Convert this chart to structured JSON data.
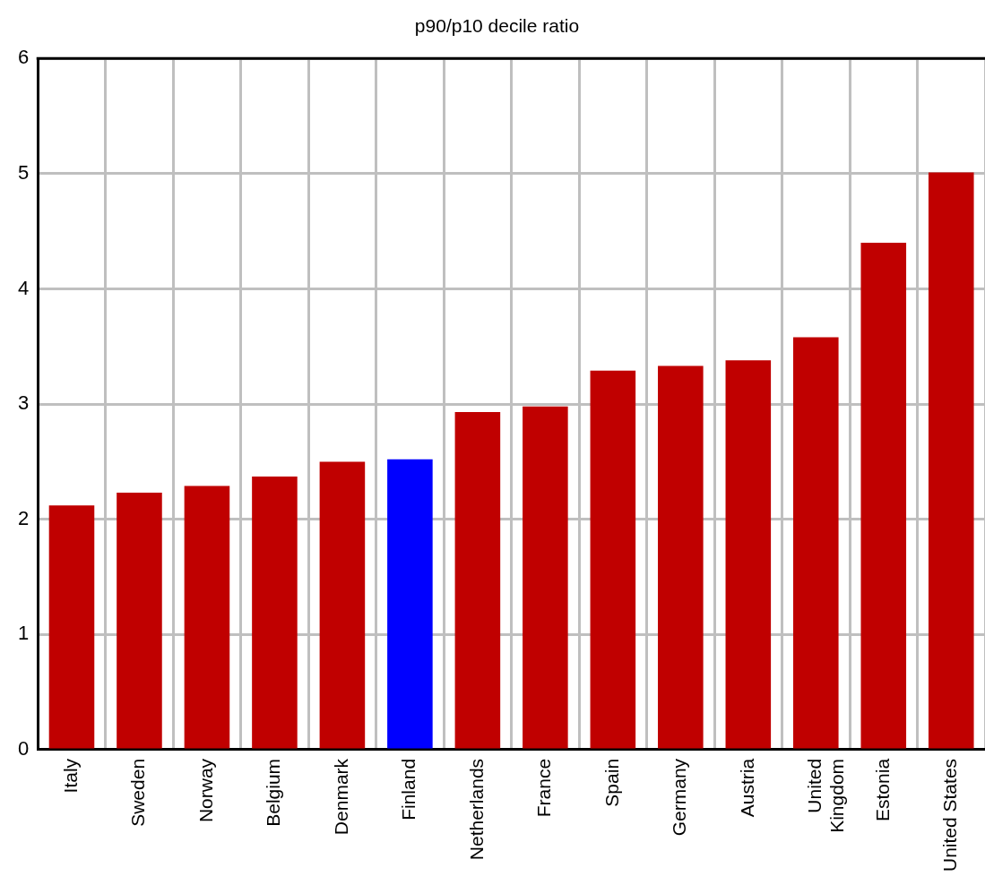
{
  "chart_data": {
    "type": "bar",
    "title": "p90/p10 decile ratio",
    "categories": [
      "Italy",
      "Sweden",
      "Norway",
      "Belgium",
      "Denmark",
      "Finland",
      "Netherlands",
      "France",
      "Spain",
      "Germany",
      "Austria",
      "United Kingdom",
      "Estonia",
      "United States"
    ],
    "values": [
      2.12,
      2.23,
      2.29,
      2.37,
      2.5,
      2.52,
      2.93,
      2.98,
      3.29,
      3.33,
      3.38,
      3.58,
      4.4,
      5.01
    ],
    "colors": [
      "#c00000",
      "#c00000",
      "#c00000",
      "#c00000",
      "#c00000",
      "#0000ff",
      "#c00000",
      "#c00000",
      "#c00000",
      "#c00000",
      "#c00000",
      "#c00000",
      "#c00000",
      "#c00000"
    ],
    "ylim": [
      0,
      6
    ],
    "yticks": [
      0,
      1,
      2,
      3,
      4,
      5,
      6
    ],
    "grid": true,
    "legend": false
  }
}
